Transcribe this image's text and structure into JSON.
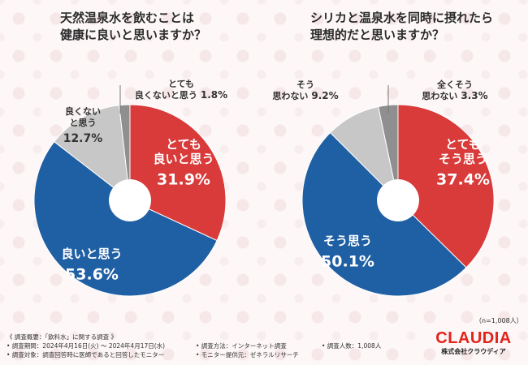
{
  "chart_data": [
    {
      "type": "pie",
      "title": "天然温泉水を飲むことは\n健康に良いと思いますか？",
      "slices": [
        {
          "label": "とても\n良いと思う",
          "value": 31.9,
          "color": "#d93a3a"
        },
        {
          "label": "良いと思う",
          "value": 53.6,
          "color": "#1f5fa3"
        },
        {
          "label": "良くない\nと思う",
          "value": 12.7,
          "color": "#c7c7c7"
        },
        {
          "label": "とても\n良くないと思う",
          "value": 1.8,
          "color": "#8f8f8f"
        }
      ],
      "value_labels": [
        "31.9%",
        "53.6%",
        "12.7%",
        "1.8%"
      ]
    },
    {
      "type": "pie",
      "title": "シリカと温泉水を同時に摂れたら\n理想的だと思いますか？",
      "slices": [
        {
          "label": "とても\nそう思う",
          "value": 37.4,
          "color": "#d93a3a"
        },
        {
          "label": "そう思う",
          "value": 50.1,
          "color": "#1f5fa3"
        },
        {
          "label": "そう\n思わない",
          "value": 9.2,
          "color": "#c7c7c7"
        },
        {
          "label": "全くそう\n思わない",
          "value": 3.3,
          "color": "#8f8f8f"
        }
      ],
      "value_labels": [
        "37.4%",
        "50.1%",
        "9.2%",
        "3.3%"
      ]
    }
  ],
  "sample_note": "（n=1,008人）",
  "footer": {
    "heading": "《 調査概要：「飲料水」に関する調査 》",
    "period": "• 調査期間：2024年4月16日(火) ～ 2024年4月17日(水)",
    "method": "• 調査方法：インターネット調査",
    "count": "• 調査人数：1,008人",
    "target": "• 調査対象：調査回答時に医師であると回答したモニター",
    "provider": "• モニター提供元：ゼネラルリサーチ"
  },
  "logo": {
    "brand": "CLAUDIA",
    "company": "株式会社クラウディア"
  }
}
